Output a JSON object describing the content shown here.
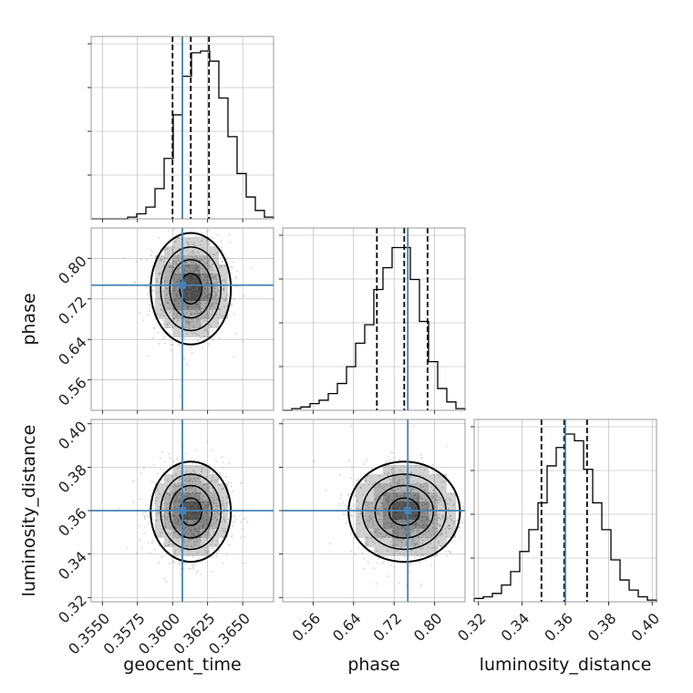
{
  "chart_data": {
    "type": "corner",
    "parameters": [
      "geocent_time",
      "phase",
      "luminosity_distance"
    ],
    "labels": {
      "geocent_time": "geocent_time",
      "phase": "phase",
      "luminosity_distance": "luminosity_distance"
    },
    "ranges": {
      "geocent_time": [
        0.3542,
        0.3672
      ],
      "phase": [
        0.5,
        0.86
      ],
      "luminosity_distance": [
        0.318,
        0.402
      ]
    },
    "ticks": {
      "geocent_time": [
        "0.3550",
        "0.3575",
        "0.3600",
        "0.3625",
        "0.3650"
      ],
      "phase": [
        "0.56",
        "0.64",
        "0.72",
        "0.80"
      ],
      "luminosity_distance": [
        "0.32",
        "0.34",
        "0.36",
        "0.38",
        "0.40"
      ]
    },
    "truths": {
      "geocent_time": 0.3607,
      "phase": 0.747,
      "luminosity_distance": 0.36
    },
    "quantiles": {
      "geocent_time": [
        0.36,
        0.3613,
        0.3626
      ],
      "phase": [
        0.686,
        0.74,
        0.786
      ],
      "luminosity_distance": [
        0.349,
        0.3595,
        0.37
      ]
    },
    "histograms": {
      "geocent_time": [
        0,
        0,
        0,
        0,
        0.01,
        0.03,
        0.07,
        0.18,
        0.36,
        0.62,
        0.85,
        0.99,
        1.0,
        0.94,
        0.72,
        0.49,
        0.27,
        0.13,
        0.05,
        0.01
      ],
      "phase": [
        0,
        0.01,
        0.02,
        0.04,
        0.06,
        0.1,
        0.16,
        0.26,
        0.4,
        0.51,
        0.72,
        0.85,
        0.97,
        0.97,
        0.78,
        0.53,
        0.29,
        0.13,
        0.05,
        0.01
      ],
      "luminosity_distance": [
        0.02,
        0.03,
        0.05,
        0.1,
        0.18,
        0.3,
        0.43,
        0.59,
        0.81,
        0.92,
        1.0,
        0.96,
        0.79,
        0.59,
        0.43,
        0.25,
        0.13,
        0.07,
        0.03,
        0.01
      ]
    },
    "grid": true,
    "colors": {
      "truth": "#4682b4",
      "hist": "#000000",
      "density": "#000000",
      "grid": "#b0b0b0"
    }
  }
}
